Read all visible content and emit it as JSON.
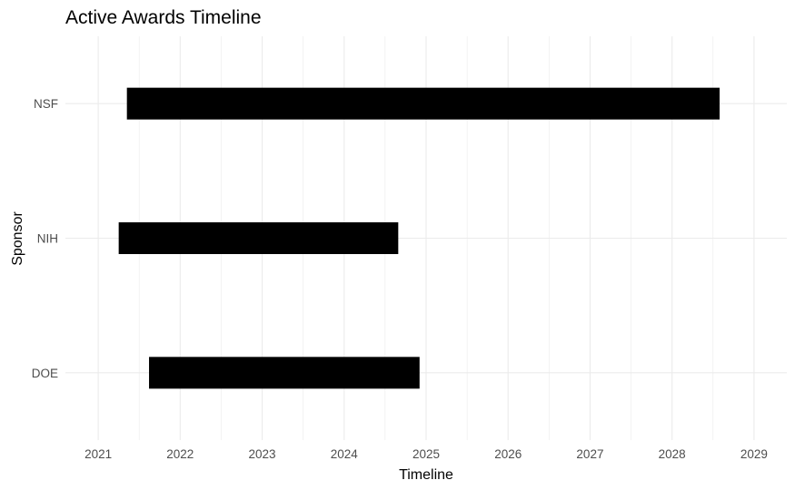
{
  "chart_data": {
    "type": "bar",
    "orientation": "horizontal-range",
    "title": "Active Awards Timeline",
    "xlabel": "Timeline",
    "ylabel": "Sponsor",
    "categories": [
      "NSF",
      "NIH",
      "DOE"
    ],
    "ranges": [
      {
        "category": "NSF",
        "start": 2021.35,
        "end": 2028.58
      },
      {
        "category": "NIH",
        "start": 2021.25,
        "end": 2024.66
      },
      {
        "category": "DOE",
        "start": 2021.62,
        "end": 2024.92
      }
    ],
    "x_ticks": [
      "2021",
      "2022",
      "2023",
      "2024",
      "2025",
      "2026",
      "2027",
      "2028",
      "2029"
    ],
    "xlim": [
      2020.6,
      2029.4
    ],
    "bar_color": "#000000",
    "grid_color": "#ebebeb",
    "grid": true,
    "legend": "none"
  }
}
